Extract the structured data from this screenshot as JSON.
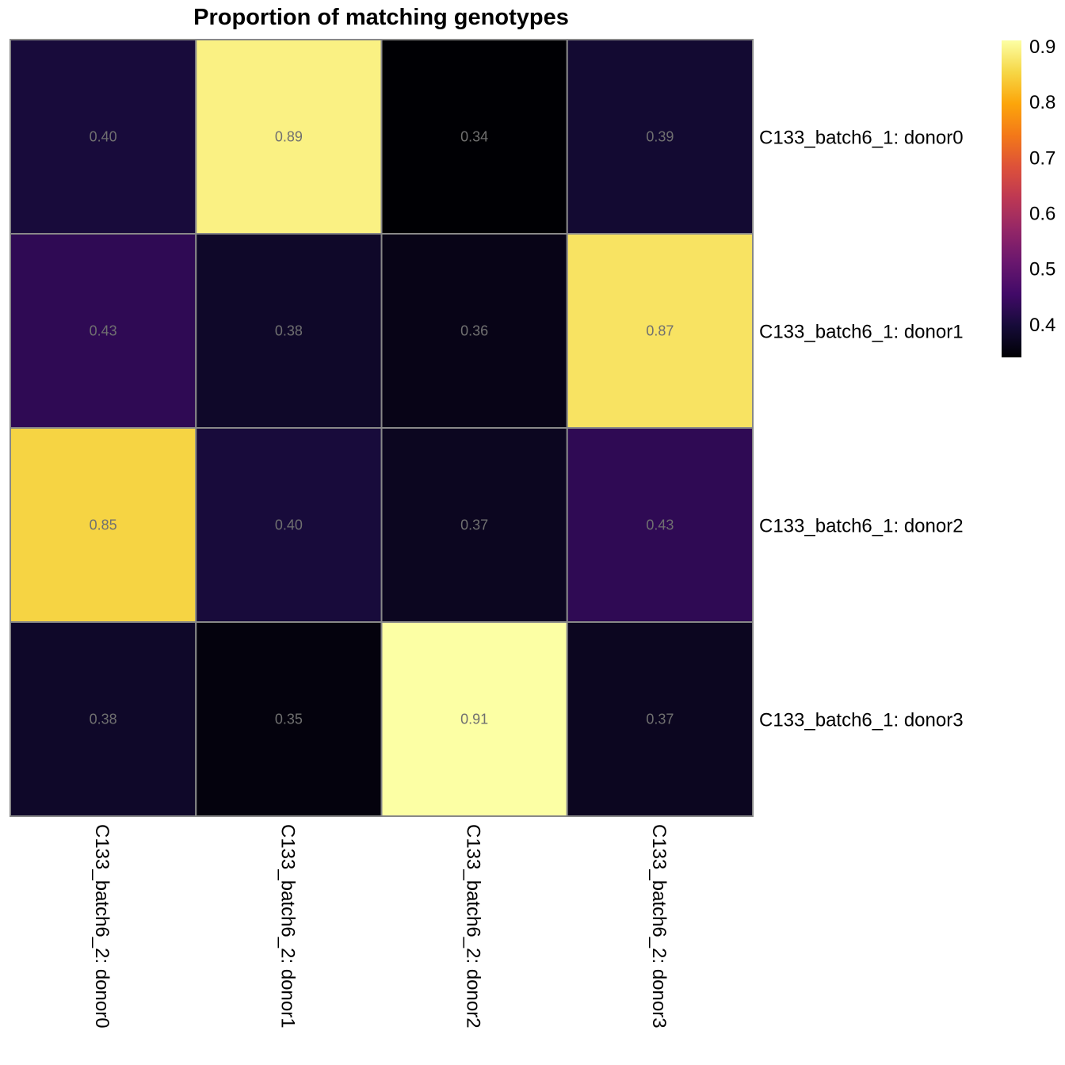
{
  "chart_data": {
    "type": "heatmap",
    "title": "Proportion of matching genotypes",
    "rows": [
      "C133_batch6_1: donor0",
      "C133_batch6_1: donor1",
      "C133_batch6_1: donor2",
      "C133_batch6_1: donor3"
    ],
    "columns": [
      "C133_batch6_2: donor0",
      "C133_batch6_2: donor1",
      "C133_batch6_2: donor2",
      "C133_batch6_2: donor3"
    ],
    "values": [
      [
        0.4,
        0.89,
        0.34,
        0.39
      ],
      [
        0.43,
        0.38,
        0.36,
        0.87
      ],
      [
        0.85,
        0.4,
        0.37,
        0.43
      ],
      [
        0.38,
        0.35,
        0.91,
        0.37
      ]
    ],
    "labels": [
      [
        "0.40",
        "0.89",
        "0.34",
        "0.39"
      ],
      [
        "0.43",
        "0.38",
        "0.36",
        "0.87"
      ],
      [
        "0.85",
        "0.40",
        "0.37",
        "0.43"
      ],
      [
        "0.38",
        "0.35",
        "0.91",
        "0.37"
      ]
    ],
    "colormap": "inferno",
    "color_range": [
      0.34,
      0.91
    ],
    "colorbar_ticks": [
      "0.4",
      "0.5",
      "0.6",
      "0.7",
      "0.8",
      "0.9"
    ],
    "colorbar_tick_values": [
      0.4,
      0.5,
      0.6,
      0.7,
      0.8,
      0.9
    ],
    "legend_placement": "right",
    "cell_border_color": "#888888",
    "cell_label_color": "#707070"
  }
}
